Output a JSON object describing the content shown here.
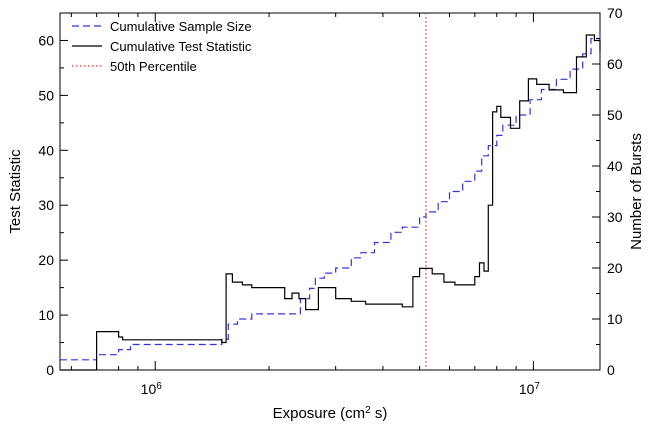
{
  "chart_data": {
    "type": "line",
    "xlabel": "Exposure (cm",
    "xlabel_sup": "2",
    "xlabel_tail": " s)",
    "ylabel_left": "Test Statistic",
    "ylabel_right": "Number of Bursts",
    "x_scale": "log",
    "xlim": [
      560000,
      15000000
    ],
    "ylim_left": [
      0,
      65
    ],
    "ylim_right": [
      0,
      70
    ],
    "x_major_ticks": [
      {
        "value": 1000000,
        "base": "10",
        "exp": "6"
      },
      {
        "value": 10000000,
        "base": "10",
        "exp": "7"
      }
    ],
    "y_left_ticks": [
      "0",
      "10",
      "20",
      "30",
      "40",
      "50",
      "60"
    ],
    "y_right_ticks": [
      "0",
      "10",
      "20",
      "30",
      "40",
      "50",
      "60",
      "70"
    ],
    "legend": [
      {
        "label": "Cumulative Sample Size",
        "color": "#3333dd",
        "style": "dashed"
      },
      {
        "label": "Cumulative Test Statistic",
        "color": "#000000",
        "style": "solid"
      },
      {
        "label": "50th Percentile",
        "color": "#dd3333",
        "style": "dotted"
      }
    ],
    "series": [
      {
        "name": "Cumulative Sample Size",
        "axis": "right",
        "color": "#3333dd",
        "x": [
          560000,
          660000,
          700000,
          740000,
          800000,
          860000,
          1000000,
          1200000,
          1500000,
          1560000,
          1650000,
          1800000,
          2000000,
          2300000,
          2420000,
          2560000,
          2650000,
          2800000,
          3000000,
          3300000,
          3500000,
          3800000,
          4200000,
          4500000,
          5000000,
          5200000,
          5600000,
          6000000,
          6500000,
          7000000,
          7300000,
          7600000,
          8000000,
          8300000,
          9000000,
          9800000,
          10500000,
          11500000,
          12500000,
          13500000,
          14200000,
          15000000
        ],
        "y": [
          2,
          2,
          3,
          3,
          4,
          5,
          5,
          5,
          6,
          9,
          10,
          11,
          11,
          11,
          14,
          16,
          18,
          19,
          20,
          22,
          23,
          25,
          27,
          28,
          30,
          31,
          33,
          35,
          37,
          39,
          42,
          44,
          46,
          48,
          50,
          53,
          55,
          57,
          59,
          62,
          65,
          66
        ]
      },
      {
        "name": "Cumulative Test Statistic",
        "axis": "left",
        "color": "#000000",
        "x": [
          560000,
          690000,
          700000,
          800000,
          820000,
          1000000,
          1200000,
          1500000,
          1540000,
          1600000,
          1700000,
          1800000,
          2000000,
          2200000,
          2300000,
          2400000,
          2500000,
          2600000,
          2700000,
          3000000,
          3300000,
          3600000,
          4000000,
          4500000,
          4800000,
          5000000,
          5400000,
          5800000,
          6200000,
          6600000,
          7000000,
          7200000,
          7400000,
          7600000,
          7800000,
          8000000,
          8200000,
          8700000,
          9200000,
          9700000,
          10200000,
          11000000,
          12000000,
          13000000,
          13800000,
          14500000,
          15000000
        ],
        "y": [
          0,
          0,
          7,
          6,
          5.5,
          5.5,
          5.5,
          5,
          17.5,
          16,
          15.5,
          15,
          15,
          13,
          14,
          13,
          11,
          11,
          15,
          13,
          12.5,
          12,
          12,
          11.5,
          17,
          18.5,
          17.5,
          16,
          15.5,
          15.5,
          17,
          19.5,
          18,
          30,
          47,
          48,
          46,
          44,
          49,
          53,
          52,
          51,
          50.5,
          57,
          61,
          60,
          58
        ]
      },
      {
        "name": "50th Percentile",
        "axis": "left",
        "color": "#dd3333",
        "vertical_line_x": 5200000
      }
    ]
  }
}
